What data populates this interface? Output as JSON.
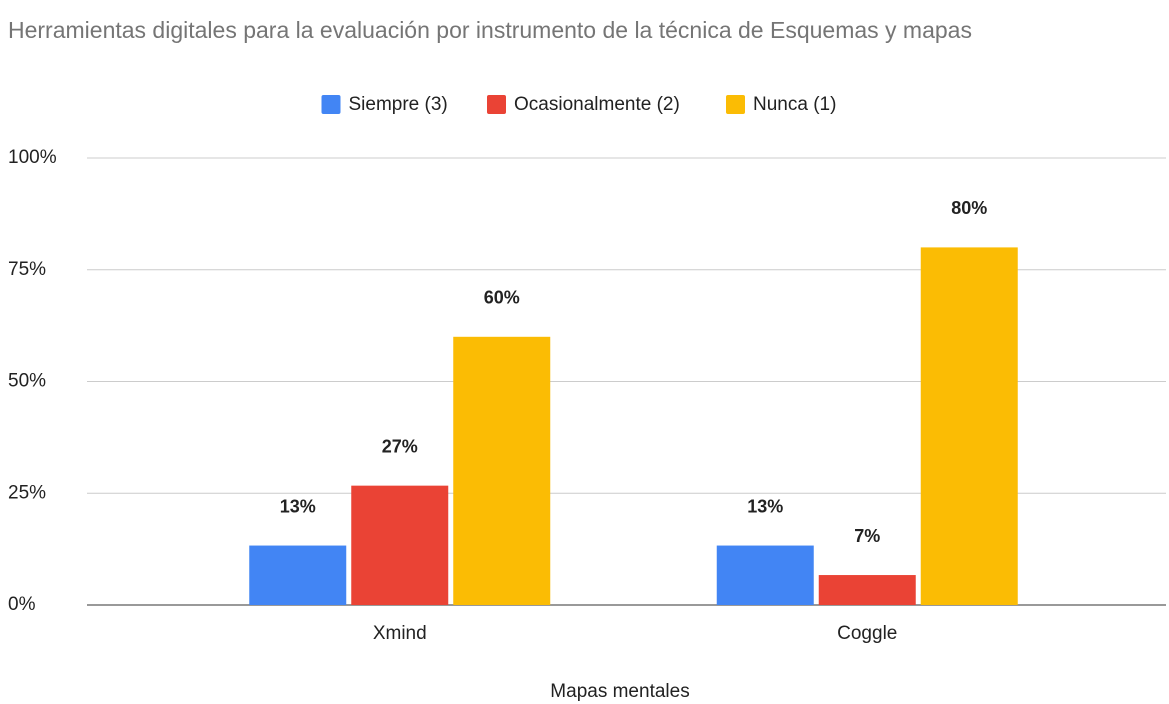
{
  "chart_data": {
    "type": "bar",
    "title": "Herramientas digitales para la evaluación por instrumento de la técnica de Esquemas y mapas",
    "x_label": "Mapas mentales",
    "categories": [
      "Xmind",
      "Coggle"
    ],
    "series": [
      {
        "name": "Siempre (3)",
        "color": "#4285f4",
        "values": [
          13.3,
          13.3
        ],
        "value_labels": [
          "13%",
          "13%"
        ]
      },
      {
        "name": "Ocasionalmente (2)",
        "color": "#ea4335",
        "values": [
          26.7,
          6.7
        ],
        "value_labels": [
          "27%",
          "7%"
        ]
      },
      {
        "name": "Nunca (1)",
        "color": "#fbbc04",
        "values": [
          60,
          80
        ],
        "value_labels": [
          "60%",
          "80%"
        ]
      }
    ],
    "ylim": [
      0,
      100
    ],
    "yticks": [
      {
        "value": 0,
        "label": "0%"
      },
      {
        "value": 25,
        "label": "25%"
      },
      {
        "value": 50,
        "label": "50%"
      },
      {
        "value": 75,
        "label": "75%"
      },
      {
        "value": 100,
        "label": "100%"
      }
    ],
    "grid": true,
    "legend": "top"
  }
}
